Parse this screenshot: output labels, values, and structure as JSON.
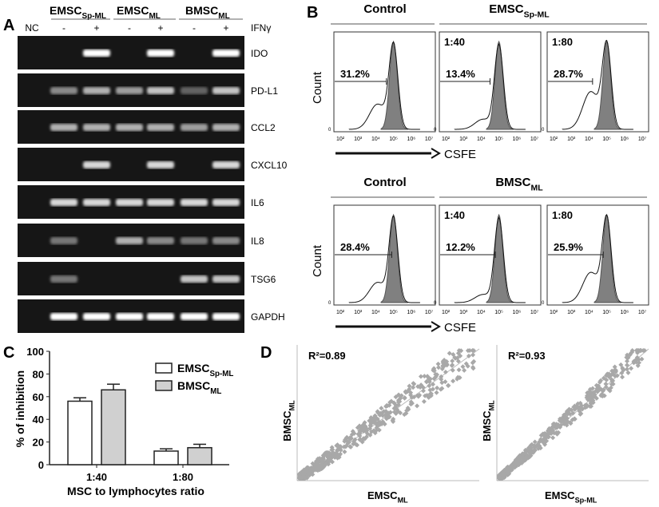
{
  "panel_a": {
    "letter": "A",
    "groups": [
      {
        "name": "EMSC",
        "sub": "Sp-ML"
      },
      {
        "name": "EMSC",
        "sub": "ML"
      },
      {
        "name": "BMSC",
        "sub": "ML"
      }
    ],
    "lane_labels": [
      "NC",
      "-",
      "+",
      "-",
      "+",
      "-",
      "+"
    ],
    "treatment_label": "IFNγ",
    "genes": [
      {
        "name": "IDO",
        "band_intensity": [
          0,
          0,
          1,
          0,
          1,
          0,
          1
        ]
      },
      {
        "name": "PD-L1",
        "band_intensity": [
          0,
          0.4,
          0.6,
          0.5,
          0.7,
          0.2,
          0.7
        ]
      },
      {
        "name": "CCL2",
        "band_intensity": [
          0,
          0.6,
          0.6,
          0.6,
          0.6,
          0.5,
          0.6
        ]
      },
      {
        "name": "CXCL10",
        "band_intensity": [
          0,
          0,
          0.8,
          0,
          0.8,
          0,
          0.8
        ]
      },
      {
        "name": "IL6",
        "band_intensity": [
          0,
          0.8,
          0.8,
          0.8,
          0.8,
          0.8,
          0.8
        ]
      },
      {
        "name": "IL8",
        "band_intensity": [
          0,
          0.3,
          0,
          0.6,
          0.4,
          0.3,
          0.4
        ]
      },
      {
        "name": "TSG6",
        "band_intensity": [
          0,
          0.3,
          0,
          0,
          0,
          0.7,
          0.7
        ]
      },
      {
        "name": "GAPDH",
        "band_intensity": [
          0,
          1,
          1,
          1,
          1,
          1,
          1
        ]
      }
    ]
  },
  "panel_b": {
    "letter": "B",
    "y_label": "Count",
    "x_label": "CSFE",
    "x_ticks": [
      "10²",
      "10³",
      "10⁴",
      "10⁵",
      "10⁶",
      "10⁷"
    ],
    "zero_label": "0",
    "rows": [
      {
        "control_label": "Control",
        "group": {
          "name": "EMSC",
          "sub": "Sp-ML"
        },
        "plots": [
          {
            "ratio": "",
            "percent": "31.2%",
            "gate_end_log": 4.6
          },
          {
            "ratio": "1:40",
            "percent": "13.4%",
            "gate_end_log": 4.5
          },
          {
            "ratio": "1:80",
            "percent": "28.7%",
            "gate_end_log": 4.2
          }
        ]
      },
      {
        "control_label": "Control",
        "group": {
          "name": "BMSC",
          "sub": "ML"
        },
        "plots": [
          {
            "ratio": "",
            "percent": "28.4%",
            "gate_end_log": 4.9
          },
          {
            "ratio": "1:40",
            "percent": "12.2%",
            "gate_end_log": 4.8
          },
          {
            "ratio": "1:80",
            "percent": "25.9%",
            "gate_end_log": 4.8
          }
        ]
      }
    ]
  },
  "chart_data": [
    {
      "type": "bar",
      "letter": "C",
      "categories": [
        "1:40",
        "1:80"
      ],
      "series": [
        {
          "name": "EMSC",
          "sub": "Sp-ML",
          "values": [
            56,
            12
          ],
          "errors": [
            3,
            2
          ],
          "color": "#ffffff"
        },
        {
          "name": "BMSC",
          "sub": "ML",
          "values": [
            66,
            15
          ],
          "errors": [
            5,
            3
          ],
          "color": "#d0d0d0"
        }
      ],
      "xlabel": "MSC to lymphocytes ratio",
      "ylabel": "% of inhibition",
      "ylim": [
        0,
        100
      ],
      "yticks": [
        "0",
        "20",
        "40",
        "60",
        "80",
        "100"
      ],
      "legend": "top-right"
    },
    {
      "type": "scatter",
      "letter": "D",
      "plots": [
        {
          "r2": "R²=0.89",
          "xlabel": {
            "name": "EMSC",
            "sub": "ML"
          },
          "ylabel": {
            "name": "BMSC",
            "sub": "ML"
          }
        },
        {
          "r2": "R²=0.93",
          "xlabel": {
            "name": "EMSC",
            "sub": "Sp-ML"
          },
          "ylabel": {
            "name": "BMSC",
            "sub": "ML"
          }
        }
      ],
      "color": "#a8a8a8"
    }
  ]
}
